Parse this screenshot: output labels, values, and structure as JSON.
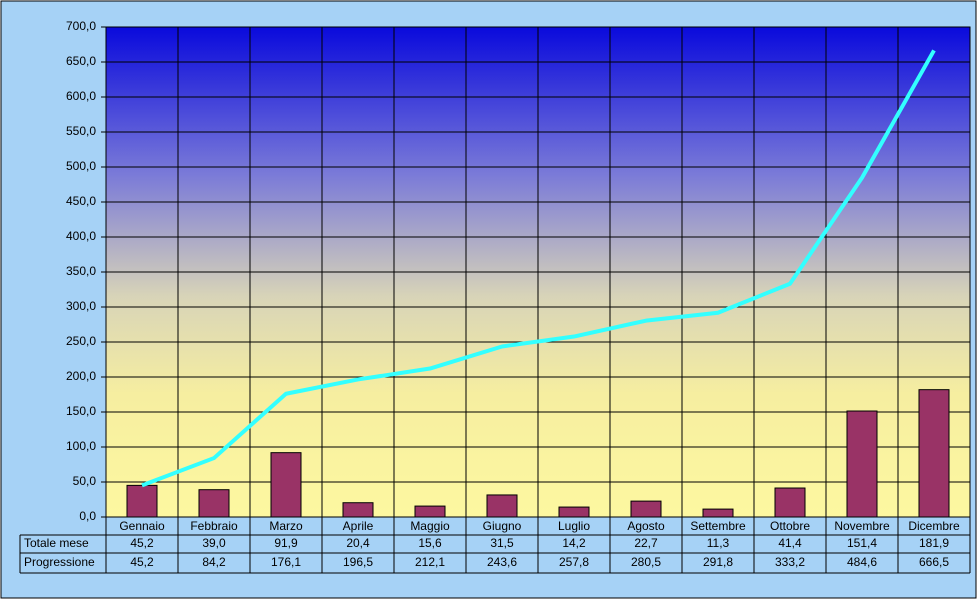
{
  "chart_data": {
    "type": "bar_line",
    "categories": [
      "Gennaio",
      "Febbraio",
      "Marzo",
      "Aprile",
      "Maggio",
      "Giugno",
      "Luglio",
      "Agosto",
      "Settembre",
      "Ottobre",
      "Novembre",
      "Dicembre"
    ],
    "series": [
      {
        "name": "Totale mese",
        "type": "bar",
        "color": "#993366",
        "values": [
          45.2,
          39.0,
          91.9,
          20.4,
          15.6,
          31.5,
          14.2,
          22.7,
          11.3,
          41.4,
          151.4,
          181.9
        ],
        "value_labels": [
          "45,2",
          "39,0",
          "91,9",
          "20,4",
          "15,6",
          "31,5",
          "14,2",
          "22,7",
          "11,3",
          "41,4",
          "151,4",
          "181,9"
        ]
      },
      {
        "name": "Progressione",
        "type": "line",
        "color": "#33ffff",
        "values": [
          45.2,
          84.2,
          176.1,
          196.5,
          212.1,
          243.6,
          257.8,
          280.5,
          291.8,
          333.2,
          484.6,
          666.5
        ],
        "value_labels": [
          "45,2",
          "84,2",
          "176,1",
          "196,5",
          "212,1",
          "243,6",
          "257,8",
          "280,5",
          "291,8",
          "333,2",
          "484,6",
          "666,5"
        ]
      }
    ],
    "ylim": [
      0,
      700
    ],
    "yticks": [
      {
        "value": 0,
        "label": "0,0"
      },
      {
        "value": 50,
        "label": "50,0"
      },
      {
        "value": 100,
        "label": "100,0"
      },
      {
        "value": 150,
        "label": "150,0"
      },
      {
        "value": 200,
        "label": "200,0"
      },
      {
        "value": 250,
        "label": "250,0"
      },
      {
        "value": 300,
        "label": "300,0"
      },
      {
        "value": 350,
        "label": "350,0"
      },
      {
        "value": 400,
        "label": "400,0"
      },
      {
        "value": 450,
        "label": "450,0"
      },
      {
        "value": 500,
        "label": "500,0"
      },
      {
        "value": 550,
        "label": "550,0"
      },
      {
        "value": 600,
        "label": "600,0"
      },
      {
        "value": 650,
        "label": "650,0"
      },
      {
        "value": 700,
        "label": "700,0"
      }
    ],
    "grid": true
  }
}
